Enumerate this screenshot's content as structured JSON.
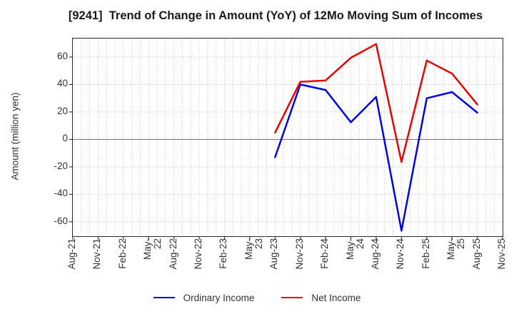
{
  "title": "[9241]  Trend of Change in Amount (YoY) of 12Mo Moving Sum of Incomes",
  "chart_data": {
    "type": "line",
    "title": "[9241]  Trend of Change in Amount (YoY) of 12Mo Moving Sum of Incomes",
    "xlabel": "",
    "ylabel": "Amount (million yen)",
    "x_tick_labels": [
      "Aug-21",
      "Nov-21",
      "Feb-22",
      "May-22",
      "Aug-22",
      "Nov-22",
      "Feb-23",
      "May-23",
      "Aug-23",
      "Nov-23",
      "Feb-24",
      "May-24",
      "Aug-24",
      "Nov-24",
      "Feb-25",
      "May-25",
      "Aug-25",
      "Nov-25"
    ],
    "x_tick_step_months": 3,
    "x_total_months": 51,
    "categories": [
      "Aug-23",
      "Nov-23",
      "Feb-24",
      "May-24",
      "Aug-24",
      "Nov-24",
      "Feb-25",
      "May-25",
      "Aug-25"
    ],
    "data_start_month": 24,
    "data_step_months": 3,
    "y_ticks": [
      -60,
      -40,
      -20,
      0,
      20,
      40,
      60
    ],
    "ylim": [
      -70.5,
      73.5
    ],
    "grid": "on",
    "grid_style": "dotted monthly vertical lines and 20-unit horizontal lines, solid zero line",
    "legend_position": "bottom center",
    "series": [
      {
        "name": "Ordinary Income",
        "color": "#0000ee",
        "values": [
          -13,
          40,
          36,
          12.5,
          31,
          -66.5,
          30,
          34.5,
          19.5
        ]
      },
      {
        "name": "Net Income",
        "color": "#ee0000",
        "values": [
          5,
          42,
          43,
          59.5,
          69.5,
          -16.5,
          57.5,
          48,
          25.5
        ]
      }
    ]
  },
  "legend": {
    "items": [
      {
        "label": "Ordinary Income",
        "color": "#0000ee"
      },
      {
        "label": "Net Income",
        "color": "#ee0000"
      }
    ]
  }
}
